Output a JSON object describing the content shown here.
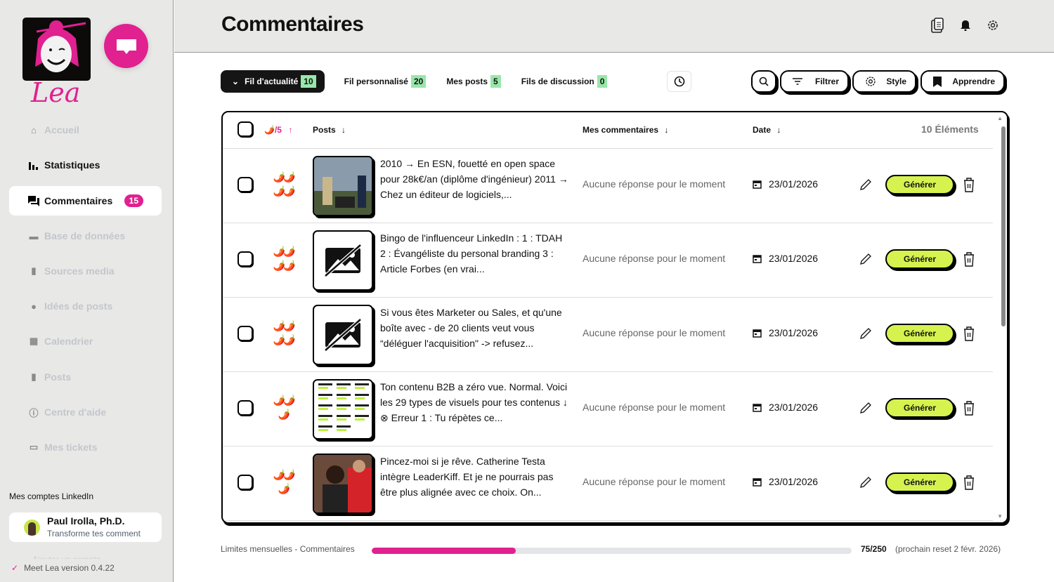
{
  "brand": {
    "name": "Lea",
    "accent": "#e0218f"
  },
  "sidebar": {
    "items": [
      {
        "label": "Accueil",
        "icon": "home-icon",
        "state": "disabled"
      },
      {
        "label": "Statistiques",
        "icon": "bar-chart-icon",
        "state": "normal"
      },
      {
        "label": "Commentaires",
        "icon": "comments-icon",
        "state": "active",
        "badge": "15"
      },
      {
        "label": "Base de données",
        "icon": "folder-icon",
        "state": "disabled"
      },
      {
        "label": "Sources media",
        "icon": "bookmark-icon",
        "state": "disabled"
      },
      {
        "label": "Idées de posts",
        "icon": "lightbulb-icon",
        "state": "disabled"
      },
      {
        "label": "Calendrier",
        "icon": "calendar-icon",
        "state": "disabled"
      },
      {
        "label": "Posts",
        "icon": "file-icon",
        "state": "disabled"
      },
      {
        "label": "Centre d'aide",
        "icon": "help-icon",
        "state": "disabled"
      },
      {
        "label": "Mes tickets",
        "icon": "ticket-icon",
        "state": "disabled"
      }
    ],
    "accounts_title": "Mes comptes LinkedIn",
    "account": {
      "name": "Paul Irolla, Ph.D.",
      "subtitle": "Transforme tes comment"
    },
    "add_account": "Ajouter un compte",
    "version": "Meet Lea version 0.4.22"
  },
  "header": {
    "title": "Commentaires"
  },
  "tabs": [
    {
      "label": "Fil d'actualité",
      "count": "10"
    },
    {
      "label": "Fil personnalisé",
      "count": "20"
    },
    {
      "label": "Mes posts",
      "count": "5"
    },
    {
      "label": "Fils de discussion",
      "count": "0"
    }
  ],
  "toolbar": {
    "filter": "Filtrer",
    "style": "Style",
    "learn": "Apprendre"
  },
  "table": {
    "headers": {
      "rating": "/5",
      "posts": "Posts",
      "comments": "Mes commentaires",
      "date": "Date",
      "count": "10 Éléments"
    },
    "generate_label": "Générer",
    "rows": [
      {
        "chilis": "🌶️🌶️🌶️🌶️",
        "thumb": "photo",
        "post": "2010 → En ESN, fouetté en open space pour 28k€/an (diplôme d'ingénieur) 2011 → Chez un éditeur de logiciels,...",
        "comment": "Aucune réponse pour le moment",
        "date": "23/01/2026"
      },
      {
        "chilis": "🌶️🌶️🌶️🌶️",
        "thumb": "none",
        "post": "Bingo de l'influenceur LinkedIn : 1 : TDAH 2 : Évangéliste du personal branding 3 : Article Forbes (en vrai...",
        "comment": "Aucune réponse pour le moment",
        "date": "23/01/2026"
      },
      {
        "chilis": "🌶️🌶️🌶️🌶️",
        "thumb": "none",
        "post": "Si vous êtes Marketer ou Sales, et qu'une boîte avec - de 20 clients veut vous “déléguer l'acquisition\" -> refusez...",
        "comment": "Aucune réponse pour le moment",
        "date": "23/01/2026"
      },
      {
        "chilis": "🌶️🌶️🌶️",
        "thumb": "diagram",
        "post": "Ton contenu B2B a zéro vue. Normal. Voici les 29 types de visuels pour tes contenus ↓ ⊗ Erreur 1 : Tu répètes ce...",
        "comment": "Aucune réponse pour le moment",
        "date": "23/01/2026"
      },
      {
        "chilis": "🌶️🌶️🌶️",
        "thumb": "photo2",
        "post": "Pincez-moi si je rêve. Catherine Testa intègre LeaderKiff. Et je ne pourrais pas être plus alignée avec ce choix. On...",
        "comment": "Aucune réponse pour le moment",
        "date": "23/01/2026"
      }
    ]
  },
  "limits": {
    "label": "Limites mensuelles - Commentaires",
    "used": 75,
    "total": 250,
    "value": "75/250",
    "reset": "(prochain reset 2 févr. 2026)"
  }
}
